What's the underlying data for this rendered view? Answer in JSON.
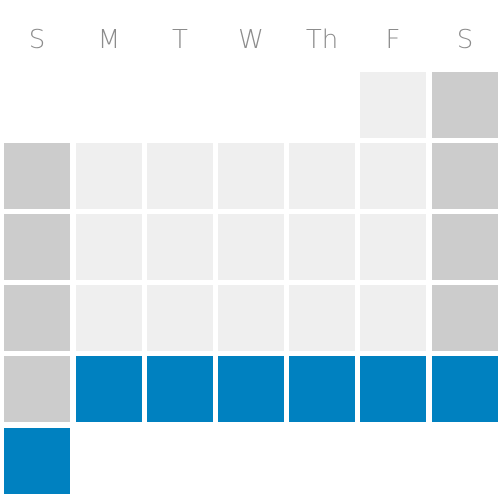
{
  "calendar": {
    "weekday_labels": [
      "S",
      "M",
      "T",
      "W",
      "Th",
      "F",
      "S"
    ],
    "colors": {
      "weekday": "#efefef",
      "weekend": "#cccccc",
      "selected": "#0081c0",
      "header_text": "#8c8c8c"
    },
    "weeks": [
      [
        "empty",
        "empty",
        "empty",
        "empty",
        "empty",
        "weekday",
        "weekend"
      ],
      [
        "weekend",
        "weekday",
        "weekday",
        "weekday",
        "weekday",
        "weekday",
        "weekend"
      ],
      [
        "weekend",
        "weekday",
        "weekday",
        "weekday",
        "weekday",
        "weekday",
        "weekend"
      ],
      [
        "weekend",
        "weekday",
        "weekday",
        "weekday",
        "weekday",
        "weekday",
        "weekend"
      ],
      [
        "weekend",
        "selected",
        "selected",
        "selected",
        "selected",
        "selected",
        "selected"
      ],
      [
        "selected",
        "empty",
        "empty",
        "empty",
        "empty",
        "empty",
        "empty"
      ]
    ]
  }
}
